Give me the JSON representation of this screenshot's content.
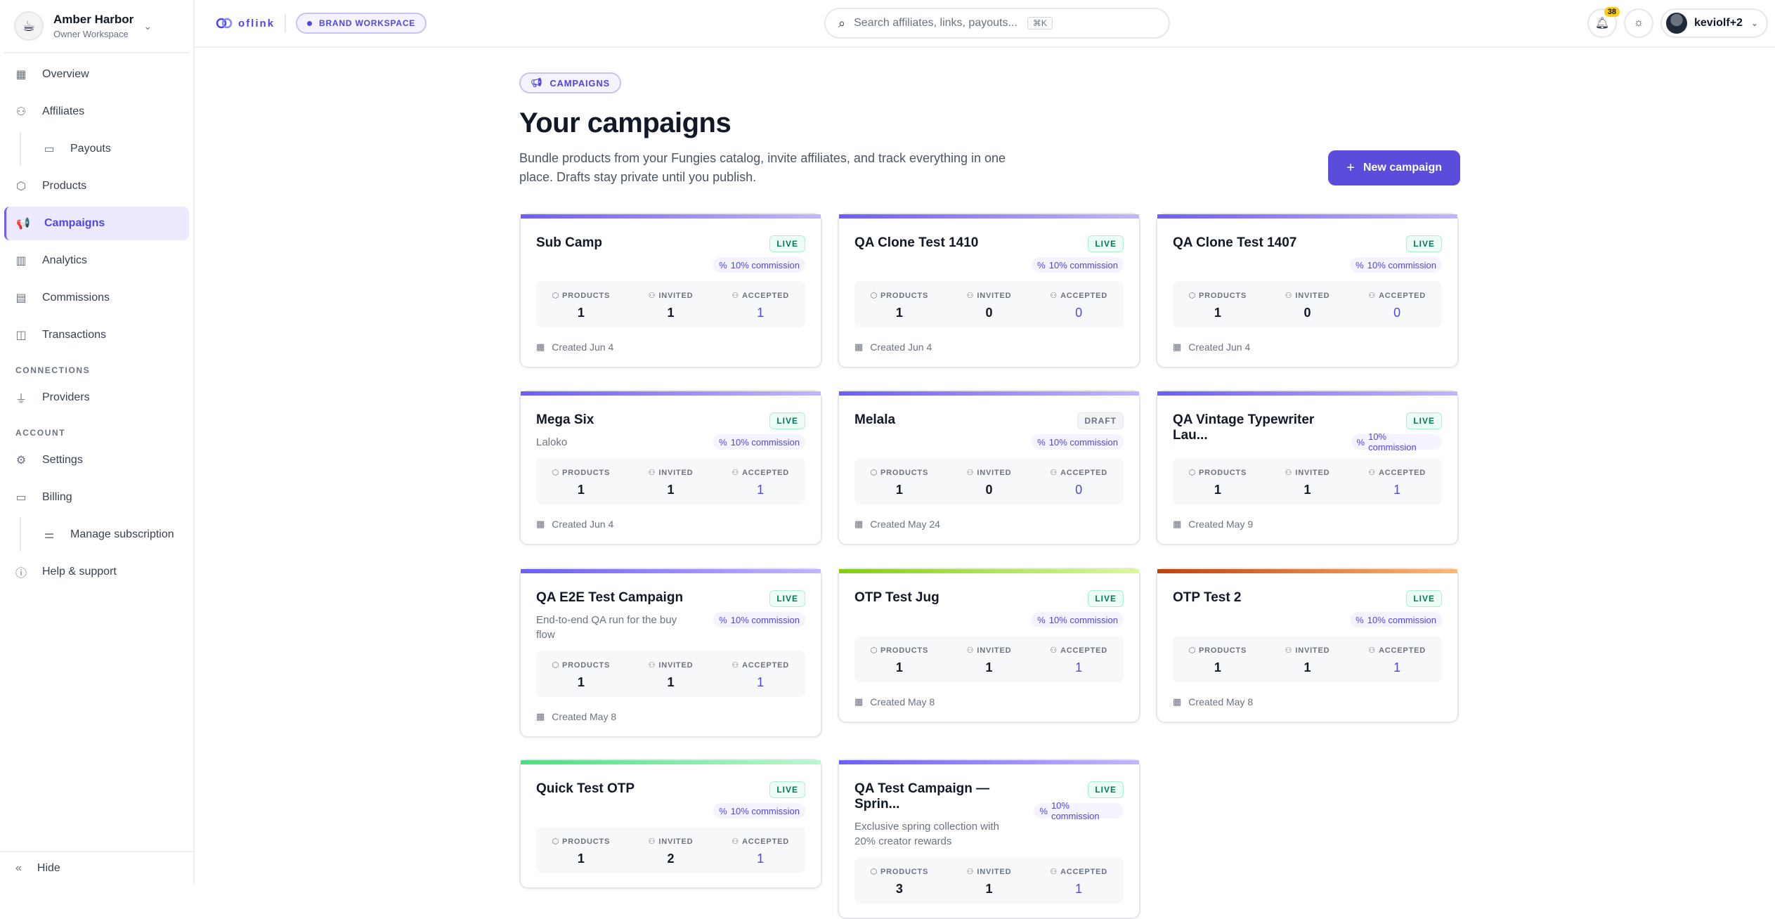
{
  "workspace": {
    "name": "Amber Harbor",
    "role": "Owner Workspace"
  },
  "nav": {
    "overview": "Overview",
    "affiliates": "Affiliates",
    "payouts": "Payouts",
    "products": "Products",
    "campaigns": "Campaigns",
    "analytics": "Analytics",
    "commissions": "Commissions",
    "transactions": "Transactions",
    "connections_heading": "CONNECTIONS",
    "providers": "Providers",
    "account_heading": "ACCOUNT",
    "settings": "Settings",
    "billing": "Billing",
    "manage_subscription": "Manage subscription",
    "help": "Help & support",
    "hide": "Hide"
  },
  "topbar": {
    "logo": "oflink",
    "brand_pill": "BRAND WORKSPACE",
    "search_placeholder": "Search affiliates, links, payouts...",
    "search_shortcut": "⌘K",
    "notification_count": "38",
    "user_name": "keviolf+2"
  },
  "page": {
    "tag": "CAMPAIGNS",
    "title": "Your campaigns",
    "description": "Bundle products from your Fungies catalog, invite affiliates, and track everything in one place. Drafts stay private until you publish.",
    "new_button": "New campaign"
  },
  "stat_labels": {
    "products": "PRODUCTS",
    "invited": "INVITED",
    "accepted": "ACCEPTED"
  },
  "colors": {
    "accent": "#5b4cdb",
    "live": "#047857"
  },
  "campaigns": [
    {
      "title": "Sub Camp",
      "subtitle": "",
      "status": "LIVE",
      "commission": "10% commission",
      "products": "1",
      "invited": "1",
      "accepted": "1",
      "created": "Created Jun 4",
      "bar": [
        "#6d5ef5",
        "#c4b5fd"
      ]
    },
    {
      "title": "QA Clone Test 1410",
      "subtitle": "",
      "status": "LIVE",
      "commission": "10% commission",
      "products": "1",
      "invited": "0",
      "accepted": "0",
      "created": "Created Jun 4",
      "bar": [
        "#6d5ef5",
        "#c4b5fd"
      ]
    },
    {
      "title": "QA Clone Test 1407",
      "subtitle": "",
      "status": "LIVE",
      "commission": "10% commission",
      "products": "1",
      "invited": "0",
      "accepted": "0",
      "created": "Created Jun 4",
      "bar": [
        "#6d5ef5",
        "#c4b5fd"
      ]
    },
    {
      "title": "Mega Six",
      "subtitle": "Laloko",
      "status": "LIVE",
      "commission": "10% commission",
      "products": "1",
      "invited": "1",
      "accepted": "1",
      "created": "Created Jun 4",
      "bar": [
        "#6d5ef5",
        "#c4b5fd"
      ]
    },
    {
      "title": "Melala",
      "subtitle": "",
      "status": "DRAFT",
      "commission": "10% commission",
      "products": "1",
      "invited": "0",
      "accepted": "0",
      "created": "Created May 24",
      "bar": [
        "#6d5ef5",
        "#c4b5fd"
      ]
    },
    {
      "title": "QA Vintage Typewriter Lau...",
      "subtitle": "",
      "status": "LIVE",
      "commission": "10% commission",
      "products": "1",
      "invited": "1",
      "accepted": "1",
      "created": "Created May 9",
      "bar": [
        "#6d5ef5",
        "#c4b5fd"
      ]
    },
    {
      "title": "QA E2E Test Campaign",
      "subtitle": "End-to-end QA run for the buy flow",
      "status": "LIVE",
      "commission": "10% commission",
      "products": "1",
      "invited": "1",
      "accepted": "1",
      "created": "Created May 8",
      "bar": [
        "#6d5ef5",
        "#c4b5fd"
      ]
    },
    {
      "title": "OTP Test Jug",
      "subtitle": "",
      "status": "LIVE",
      "commission": "10% commission",
      "products": "1",
      "invited": "1",
      "accepted": "1",
      "created": "Created May 8",
      "bar": [
        "#84cc16",
        "#d9f99d"
      ]
    },
    {
      "title": "OTP Test 2",
      "subtitle": "",
      "status": "LIVE",
      "commission": "10% commission",
      "products": "1",
      "invited": "1",
      "accepted": "1",
      "created": "Created May 8",
      "bar": [
        "#c2410c",
        "#fdba74"
      ]
    },
    {
      "title": "Quick Test OTP",
      "subtitle": "",
      "status": "LIVE",
      "commission": "10% commission",
      "products": "1",
      "invited": "2",
      "accepted": "1",
      "created": "",
      "bar": [
        "#4ade80",
        "#bbf7d0"
      ]
    },
    {
      "title": "QA Test Campaign — Sprin...",
      "subtitle": "Exclusive spring collection with 20% creator rewards",
      "status": "LIVE",
      "commission": "10% commission",
      "products": "3",
      "invited": "1",
      "accepted": "1",
      "created": "",
      "bar": [
        "#6d5ef5",
        "#c4b5fd"
      ]
    }
  ]
}
